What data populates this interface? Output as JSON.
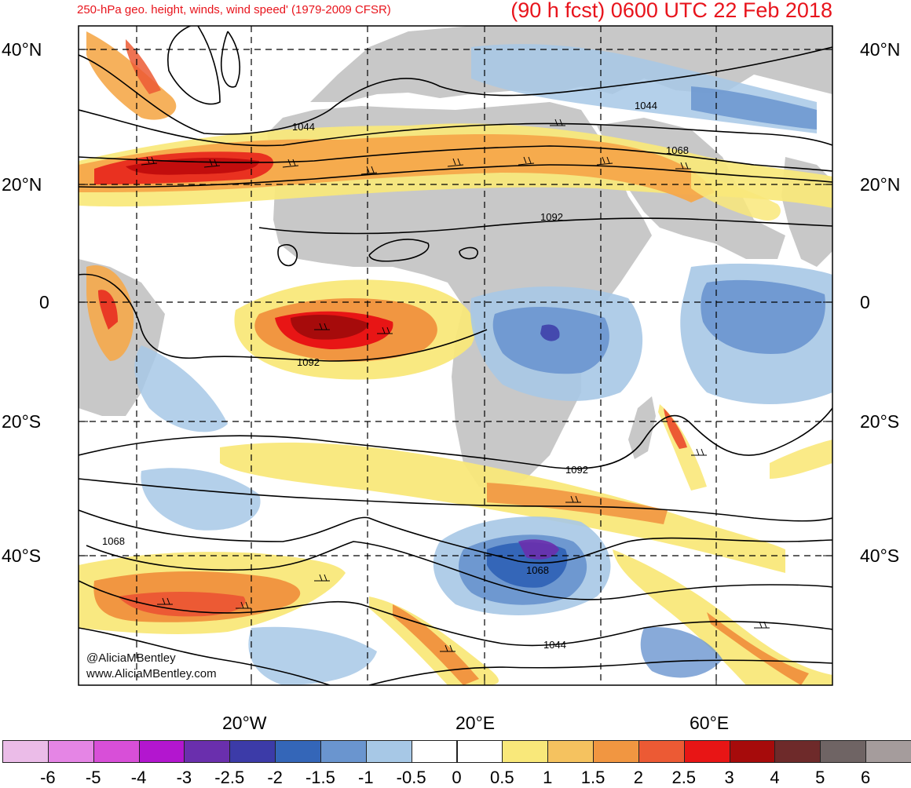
{
  "title": {
    "left": "250-hPa geo. height, winds, wind speed' (1979-2009 CFSR)",
    "right": "(90 h fcst) 0600 UTC 22 Feb 2018"
  },
  "lat_labels": [
    "40°N",
    "20°N",
    "0",
    "20°S",
    "40°S"
  ],
  "lon_labels": [
    "20°W",
    "20°E",
    "60°E"
  ],
  "contour_labels": [
    "1044",
    "1044",
    "1068",
    "1092",
    "1092",
    "1092",
    "1068",
    "1068",
    "1044"
  ],
  "credit": [
    "@AliciaMBentley",
    "www.AliciaMBentley.com"
  ],
  "colorbar": {
    "labels": [
      "-6",
      "-5",
      "-4",
      "-3",
      "-2.5",
      "-2",
      "-1.5",
      "-1",
      "-0.5",
      "0",
      "0.5",
      "1",
      "1.5",
      "2",
      "2.5",
      "3",
      "4",
      "5",
      "6"
    ],
    "colors": [
      "#ebbce8",
      "#e585e5",
      "#d84fd8",
      "#b316cf",
      "#6a2fad",
      "#3c3ba8",
      "#3466b8",
      "#6a95cf",
      "#a7c8e6",
      "#ffffff",
      "#ffffff",
      "#f9e87a",
      "#f5c25f",
      "#f19641",
      "#ec5a34",
      "#e81515",
      "#a60b0b",
      "#6e2a2a",
      "#6f6464",
      "#a59c9c"
    ]
  }
}
